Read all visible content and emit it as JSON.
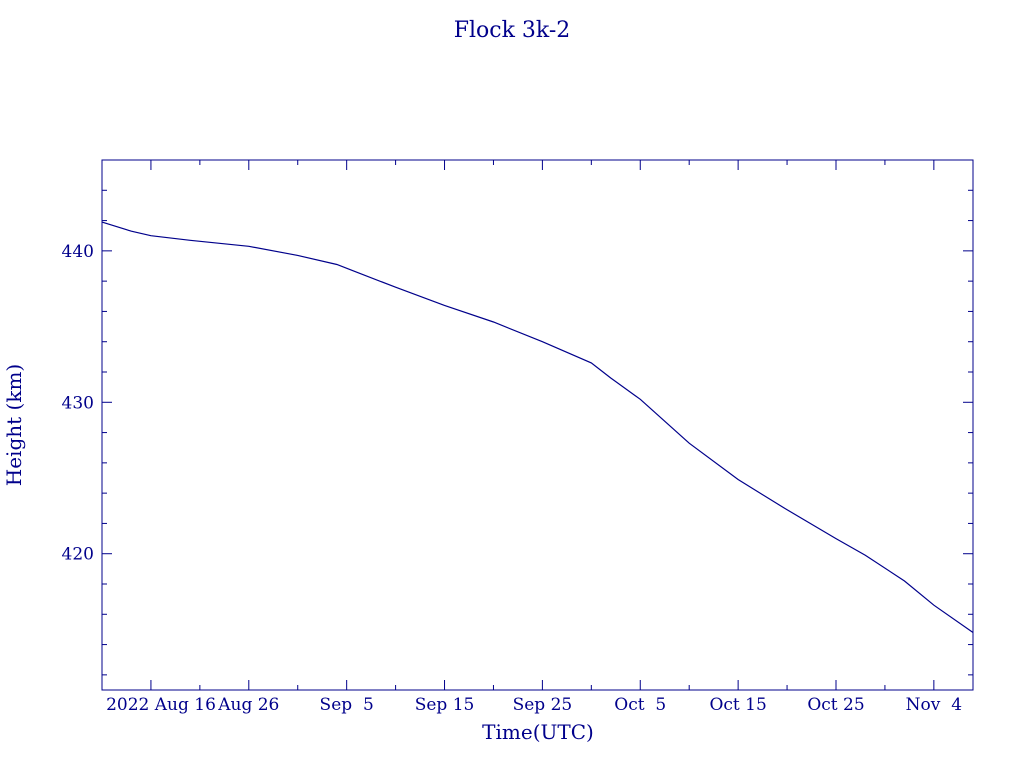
{
  "chart_data": {
    "type": "line",
    "title": "Flock 3k-2",
    "xlabel": "Time(UTC)",
    "ylabel": "Height (km)",
    "colors": {
      "axis": "#00008b",
      "line": "#00008b",
      "background": "#ffffff"
    },
    "grid": false,
    "xlim": [
      "2022-08-11",
      "2022-11-08"
    ],
    "ylim": [
      411,
      446
    ],
    "x_ticks": [
      {
        "date": "2022-08-16",
        "label": "2022 Aug 16"
      },
      {
        "date": "2022-08-26",
        "label": "Aug 26"
      },
      {
        "date": "2022-09-05",
        "label": "Sep  5"
      },
      {
        "date": "2022-09-15",
        "label": "Sep 15"
      },
      {
        "date": "2022-09-25",
        "label": "Sep 25"
      },
      {
        "date": "2022-10-05",
        "label": "Oct  5"
      },
      {
        "date": "2022-10-15",
        "label": "Oct 15"
      },
      {
        "date": "2022-10-25",
        "label": "Oct 25"
      },
      {
        "date": "2022-11-04",
        "label": "Nov  4"
      }
    ],
    "y_ticks": [
      420,
      430,
      440
    ],
    "series": [
      {
        "x": [
          "2022-08-11",
          "2022-08-14",
          "2022-08-16",
          "2022-08-20",
          "2022-08-26",
          "2022-08-31",
          "2022-09-04",
          "2022-09-06",
          "2022-09-10",
          "2022-09-15",
          "2022-09-20",
          "2022-09-25",
          "2022-09-30",
          "2022-10-02",
          "2022-10-05",
          "2022-10-10",
          "2022-10-15",
          "2022-10-20",
          "2022-10-25",
          "2022-10-28",
          "2022-11-01",
          "2022-11-04",
          "2022-11-08"
        ],
        "y": [
          441.9,
          441.3,
          441.0,
          440.7,
          440.3,
          439.7,
          439.1,
          438.6,
          437.6,
          436.4,
          435.3,
          434.0,
          432.6,
          431.6,
          430.2,
          427.3,
          424.9,
          422.9,
          421.0,
          419.9,
          418.2,
          416.6,
          414.8
        ]
      }
    ]
  }
}
